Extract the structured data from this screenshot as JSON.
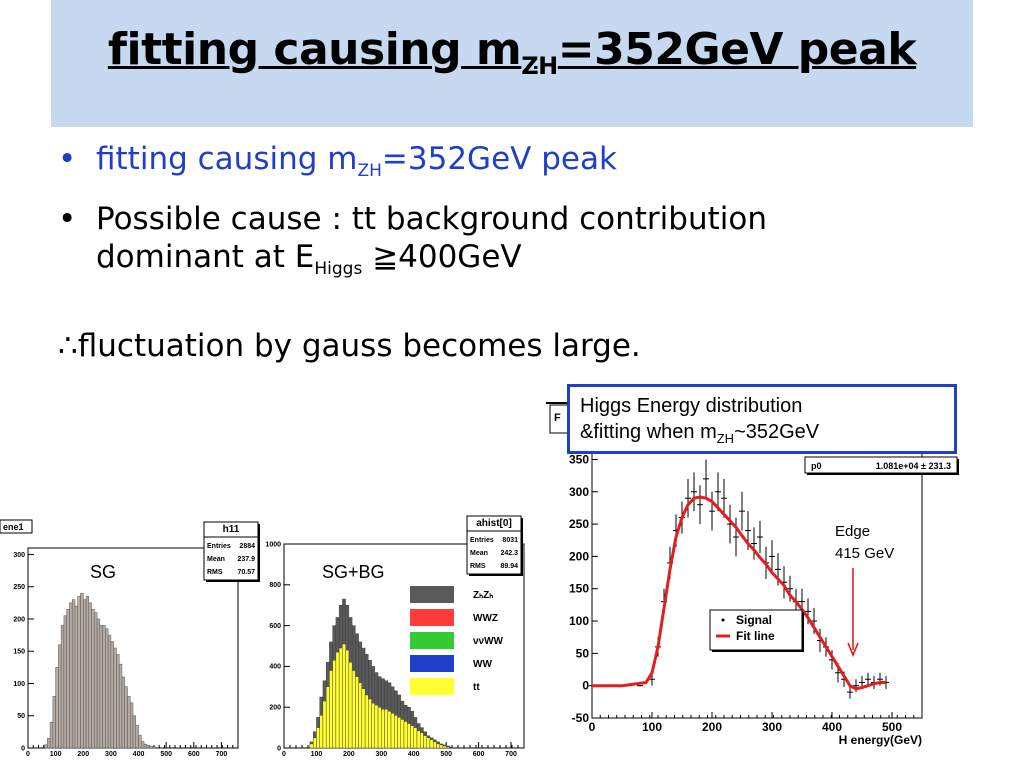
{
  "slide": {
    "title_main": "fitting causing m",
    "title_sub": "ZH",
    "title_rest": "=352GeV peak",
    "bullet1_main": "fitting causing m",
    "bullet1_sub": "ZH",
    "bullet1_rest": "=352GeV peak",
    "bullet2_line1": "Possible cause : tt background contribution",
    "bullet2_line2_main": "dominant at E",
    "bullet2_line2_sub": "Higgs",
    "bullet2_line2_rest": " ≧400GeV",
    "therefore": "∴fluctuation by gauss becomes large.",
    "bullet_mark": "•",
    "colors": {
      "title_bg": "#c6d9f1",
      "bullet_blue": "#1f3fc8"
    }
  },
  "callout": {
    "line1": "Higgs Energy distribution",
    "line2_main": "&fitting when m",
    "line2_sub": "ZH",
    "line2_rest": "~352GeV"
  },
  "chart_data": [
    {
      "type": "bar",
      "name_box": "ene1",
      "label": "SG",
      "stats": {
        "title": "h11",
        "rows": [
          [
            "Entries",
            "2884"
          ],
          [
            "Mean",
            "237.9"
          ],
          [
            "RMS",
            "70.57"
          ]
        ]
      },
      "x_ticks": [
        "0",
        "100",
        "200",
        "300",
        "400",
        "500",
        "600",
        "700"
      ],
      "y_ticks": [
        "0",
        "50",
        "100",
        "150",
        "200",
        "250",
        "300"
      ],
      "xlim": [
        0,
        760
      ],
      "ylim": [
        0,
        310
      ],
      "bin_width": 10,
      "x": [
        60,
        70,
        80,
        90,
        100,
        110,
        120,
        130,
        140,
        150,
        160,
        170,
        180,
        190,
        200,
        210,
        220,
        230,
        240,
        250,
        260,
        270,
        280,
        290,
        300,
        310,
        320,
        330,
        340,
        350,
        360,
        370,
        380,
        390,
        400,
        410,
        420,
        430,
        440,
        450,
        460
      ],
      "values": [
        5,
        15,
        40,
        80,
        125,
        160,
        190,
        205,
        215,
        225,
        230,
        220,
        235,
        240,
        230,
        235,
        225,
        215,
        210,
        200,
        190,
        190,
        185,
        175,
        165,
        155,
        145,
        130,
        110,
        95,
        80,
        70,
        50,
        35,
        20,
        10,
        6,
        4,
        3,
        2,
        1
      ],
      "color": "#b5aba3"
    },
    {
      "type": "bar",
      "label": "SG+BG",
      "stats": {
        "title": "ahist[0]",
        "rows": [
          [
            "Entries",
            "8031"
          ],
          [
            "Mean",
            "242.3"
          ],
          [
            "RMS",
            "89.94"
          ]
        ]
      },
      "x_ticks": [
        "0",
        "100",
        "200",
        "300",
        "400",
        "500",
        "600",
        "700"
      ],
      "y_ticks": [
        "0",
        "200",
        "400",
        "600",
        "800",
        "1000"
      ],
      "xlim": [
        0,
        740
      ],
      "ylim": [
        0,
        1000
      ],
      "bin_width": 10,
      "x": [
        80,
        90,
        100,
        110,
        120,
        130,
        140,
        150,
        160,
        170,
        180,
        190,
        200,
        210,
        220,
        230,
        240,
        250,
        260,
        270,
        280,
        290,
        300,
        310,
        320,
        330,
        340,
        350,
        360,
        370,
        380,
        390,
        400,
        410,
        420,
        430,
        440,
        450,
        460,
        470,
        480,
        490,
        500,
        510
      ],
      "series": [
        {
          "name": "Z<sub>H</sub>Z<sub>H</sub>",
          "color": "#5a5a5a",
          "values": [
            30,
            80,
            150,
            250,
            330,
            420,
            520,
            600,
            640,
            700,
            730,
            700,
            640,
            600,
            560,
            520,
            490,
            460,
            430,
            400,
            370,
            350,
            340,
            330,
            320,
            300,
            280,
            260,
            230,
            210,
            200,
            180,
            150,
            120,
            100,
            80,
            60,
            50,
            40,
            30,
            20,
            15,
            10,
            5
          ]
        },
        {
          "name": "tt",
          "color": "#ffff33",
          "values": [
            20,
            50,
            100,
            160,
            230,
            300,
            380,
            430,
            470,
            490,
            510,
            480,
            420,
            380,
            350,
            320,
            290,
            260,
            240,
            220,
            210,
            200,
            190,
            190,
            180,
            170,
            160,
            150,
            140,
            130,
            120,
            110,
            100,
            85,
            75,
            60,
            50,
            40,
            30,
            20,
            15,
            10,
            5,
            2
          ]
        }
      ],
      "legend": [
        {
          "label": "ZₕZₕ",
          "color": "#5a5a5a"
        },
        {
          "label": "WWZ",
          "color": "#ff3b3b"
        },
        {
          "label": "ννWW",
          "color": "#33cc33"
        },
        {
          "label": "WW",
          "color": "#1f3fc8"
        },
        {
          "label": "tt",
          "color": "#ffff33"
        }
      ]
    },
    {
      "type": "scatter",
      "stats": {
        "title": "p0",
        "value": "1.081e+04 ± 231.3"
      },
      "x_ticks": [
        "0",
        "100",
        "200",
        "300",
        "400",
        "500"
      ],
      "y_ticks": [
        "-50",
        "0",
        "50",
        "100",
        "150",
        "200",
        "250",
        "300",
        "350"
      ],
      "xlabel": "H energy(GeV)",
      "xlim": [
        0,
        550
      ],
      "ylim": [
        -50,
        360
      ],
      "points": {
        "x": [
          0,
          20,
          40,
          60,
          80,
          100,
          110,
          120,
          130,
          140,
          150,
          160,
          170,
          180,
          190,
          200,
          210,
          220,
          230,
          240,
          250,
          260,
          270,
          280,
          290,
          300,
          310,
          320,
          330,
          340,
          350,
          360,
          370,
          380,
          390,
          400,
          410,
          420,
          430,
          440,
          450,
          460,
          470,
          480,
          490
        ],
        "y": [
          0,
          0,
          0,
          0,
          0,
          10,
          60,
          130,
          190,
          240,
          260,
          290,
          300,
          280,
          320,
          270,
          300,
          290,
          250,
          230,
          270,
          240,
          220,
          230,
          190,
          200,
          180,
          160,
          150,
          130,
          130,
          115,
          100,
          70,
          60,
          40,
          20,
          10,
          -10,
          0,
          5,
          10,
          5,
          10,
          5
        ],
        "err": [
          1,
          1,
          1,
          1,
          1,
          10,
          15,
          20,
          25,
          25,
          25,
          30,
          30,
          30,
          30,
          30,
          30,
          30,
          30,
          30,
          30,
          30,
          25,
          25,
          25,
          25,
          25,
          25,
          20,
          20,
          20,
          20,
          20,
          18,
          15,
          15,
          15,
          12,
          10,
          10,
          10,
          10,
          10,
          10,
          10
        ]
      },
      "fit": {
        "x": [
          0,
          50,
          90,
          100,
          110,
          120,
          130,
          140,
          150,
          160,
          170,
          180,
          190,
          200,
          210,
          220,
          230,
          240,
          250,
          260,
          270,
          280,
          290,
          300,
          310,
          320,
          330,
          340,
          350,
          360,
          370,
          380,
          390,
          400,
          410,
          420,
          430,
          440,
          450,
          460,
          470,
          480,
          490
        ],
        "y": [
          0,
          0,
          5,
          20,
          60,
          120,
          180,
          230,
          260,
          280,
          290,
          292,
          290,
          285,
          275,
          265,
          255,
          245,
          232,
          220,
          210,
          198,
          188,
          175,
          165,
          155,
          140,
          130,
          118,
          105,
          90,
          75,
          60,
          45,
          30,
          15,
          0,
          -5,
          -3,
          0,
          3,
          5,
          5
        ]
      },
      "legend": [
        {
          "label": "Signal",
          "color": "#000000",
          "kind": "marker"
        },
        {
          "label": "Fit line",
          "color": "#e31e1e",
          "kind": "line"
        }
      ],
      "annotation": {
        "line1": "Edge",
        "line2": "415 GeV",
        "x": 415
      },
      "corner_mark": "F"
    }
  ]
}
